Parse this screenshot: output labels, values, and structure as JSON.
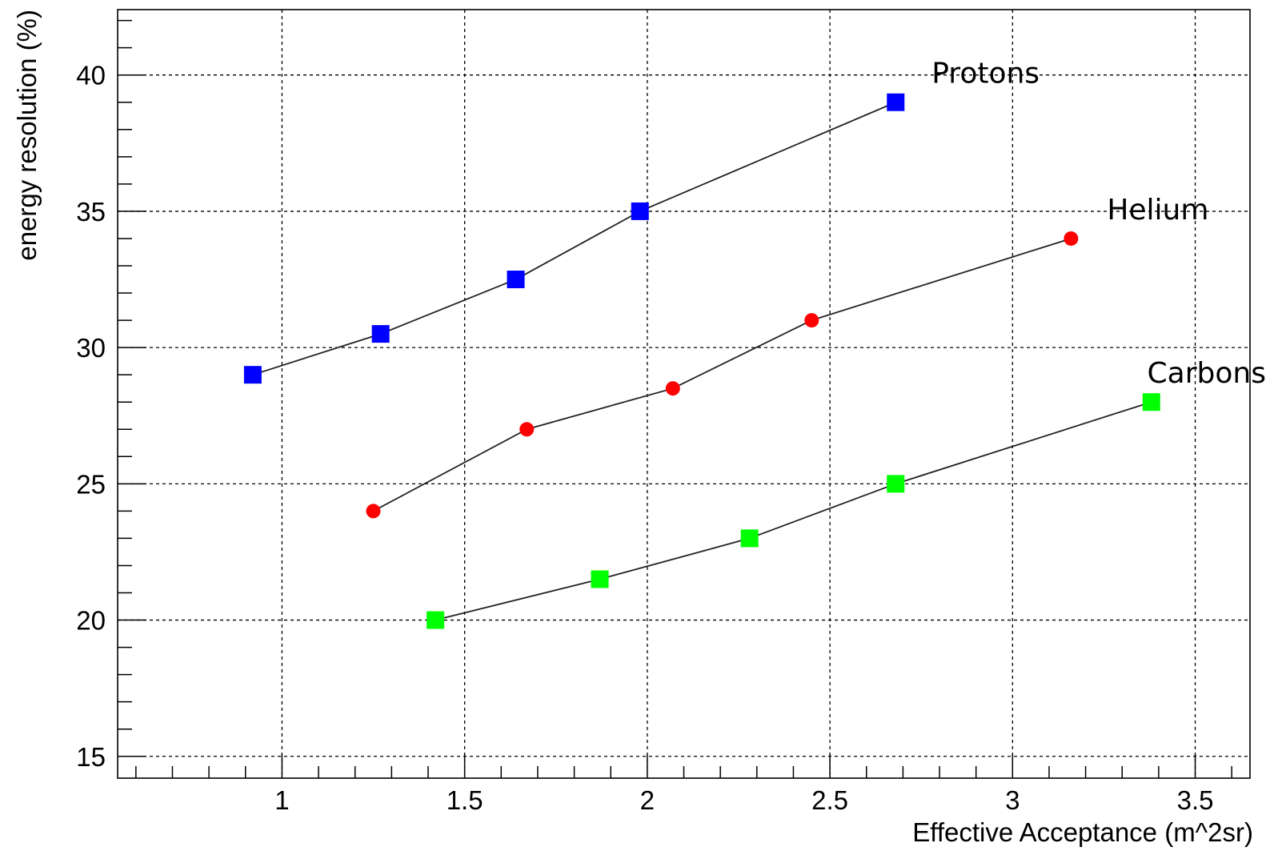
{
  "chart_data": {
    "type": "scatter",
    "title": "",
    "xlabel": "Effective Acceptance (m^2sr)",
    "ylabel": "energy resolution (%)",
    "xlim": [
      0.55,
      3.65
    ],
    "ylim": [
      14.2,
      42.4
    ],
    "x_ticks": [
      1,
      1.5,
      2,
      2.5,
      3,
      3.5
    ],
    "x_tick_labels": [
      "1",
      "1.5",
      "2",
      "2.5",
      "3",
      "3.5"
    ],
    "y_ticks": [
      15,
      20,
      25,
      30,
      35,
      40
    ],
    "y_tick_labels": [
      "15",
      "20",
      "25",
      "30",
      "35",
      "40"
    ],
    "grid": true,
    "series": [
      {
        "name": "Protons",
        "color": "#0000ff",
        "marker": "square",
        "x": [
          0.92,
          1.27,
          1.64,
          1.98,
          2.68
        ],
        "y": [
          29,
          30.5,
          32.5,
          35,
          39
        ]
      },
      {
        "name": "Helium",
        "color": "#ff0000",
        "marker": "circle",
        "x": [
          1.25,
          1.67,
          2.07,
          2.45,
          3.16
        ],
        "y": [
          24,
          27,
          28.5,
          31,
          34
        ]
      },
      {
        "name": "Carbons",
        "color": "#00ff00",
        "marker": "square",
        "x": [
          1.42,
          1.87,
          2.28,
          2.68,
          3.38
        ],
        "y": [
          20,
          21.5,
          23,
          25,
          28
        ]
      }
    ]
  }
}
